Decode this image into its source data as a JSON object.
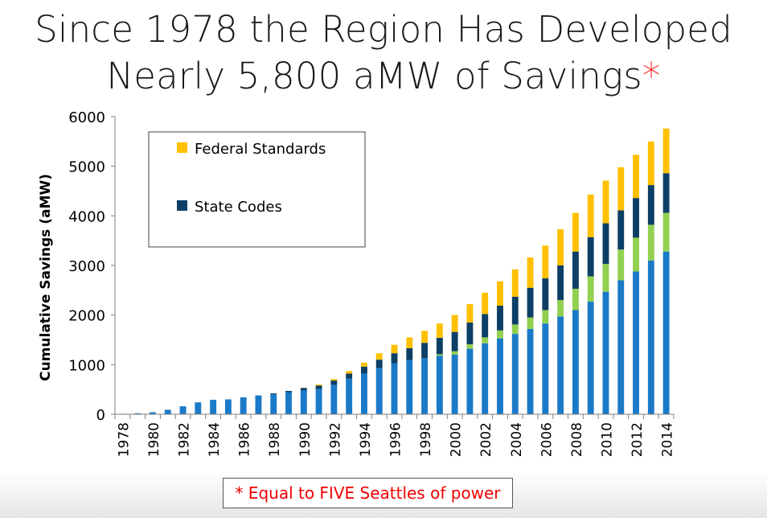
{
  "title": {
    "line1": "Since 1978 the Region Has Developed",
    "line2": "Nearly 5,800 aMW of Savings",
    "asterisk": "*"
  },
  "footnote": "* Equal to FIVE Seattles of power",
  "colors": {
    "programs": "#1a7ac8",
    "other": "#92d050",
    "state_codes": "#0d3f66",
    "federal_standards": "#ffc000"
  },
  "chart_data": {
    "type": "bar",
    "stacked": true,
    "title": "",
    "xlabel": "",
    "ylabel": "Cumulative Savings (aMW)",
    "ylim": [
      0,
      6000
    ],
    "yticks": [
      0,
      1000,
      2000,
      3000,
      4000,
      5000,
      6000
    ],
    "grid": false,
    "legend_position": "top-left inside plot",
    "categories": [
      "1978",
      "1979",
      "1980",
      "1981",
      "1982",
      "1983",
      "1984",
      "1985",
      "1986",
      "1987",
      "1988",
      "1989",
      "1990",
      "1991",
      "1992",
      "1993",
      "1994",
      "1995",
      "1996",
      "1997",
      "1998",
      "1999",
      "2000",
      "2001",
      "2002",
      "2003",
      "2004",
      "2005",
      "2006",
      "2007",
      "2008",
      "2009",
      "2010",
      "2011",
      "2012",
      "2013",
      "2014"
    ],
    "xtick_labels": [
      "1978",
      "",
      "1980",
      "",
      "1982",
      "",
      "1984",
      "",
      "1986",
      "",
      "1988",
      "",
      "1990",
      "",
      "1992",
      "",
      "1994",
      "",
      "1996",
      "",
      "1998",
      "",
      "2000",
      "",
      "2002",
      "",
      "2004",
      "",
      "2006",
      "",
      "2008",
      "",
      "2010",
      "",
      "2012",
      "",
      "2014"
    ],
    "series": [
      {
        "color_key": "programs",
        "values": [
          10,
          20,
          40,
          90,
          160,
          240,
          290,
          300,
          340,
          380,
          400,
          440,
          480,
          510,
          590,
          720,
          820,
          930,
          1030,
          1090,
          1130,
          1180,
          1200,
          1320,
          1430,
          1530,
          1620,
          1720,
          1830,
          1970,
          2100,
          2270,
          2470,
          2700,
          2880,
          3100,
          3280
        ],
        "in_legend": false
      },
      {
        "color_key": "other",
        "values": [
          0,
          0,
          0,
          0,
          0,
          0,
          0,
          0,
          0,
          0,
          0,
          0,
          0,
          0,
          0,
          0,
          0,
          0,
          0,
          0,
          0,
          30,
          70,
          90,
          120,
          160,
          190,
          230,
          270,
          330,
          430,
          510,
          560,
          620,
          680,
          720,
          780
        ],
        "in_legend": false
      },
      {
        "name": "State Codes",
        "color_key": "state_codes",
        "values": [
          0,
          0,
          0,
          0,
          0,
          0,
          0,
          0,
          0,
          0,
          20,
          30,
          50,
          70,
          90,
          100,
          140,
          170,
          200,
          240,
          310,
          330,
          390,
          440,
          470,
          500,
          560,
          600,
          640,
          700,
          750,
          790,
          820,
          790,
          800,
          800,
          800
        ],
        "in_legend": true
      },
      {
        "name": "Federal Standards",
        "color_key": "federal_standards",
        "values": [
          0,
          0,
          0,
          0,
          0,
          0,
          0,
          0,
          0,
          0,
          0,
          0,
          0,
          20,
          30,
          50,
          80,
          130,
          170,
          220,
          240,
          290,
          340,
          370,
          430,
          490,
          550,
          610,
          660,
          730,
          780,
          860,
          860,
          870,
          870,
          880,
          900
        ],
        "in_legend": true
      }
    ]
  }
}
